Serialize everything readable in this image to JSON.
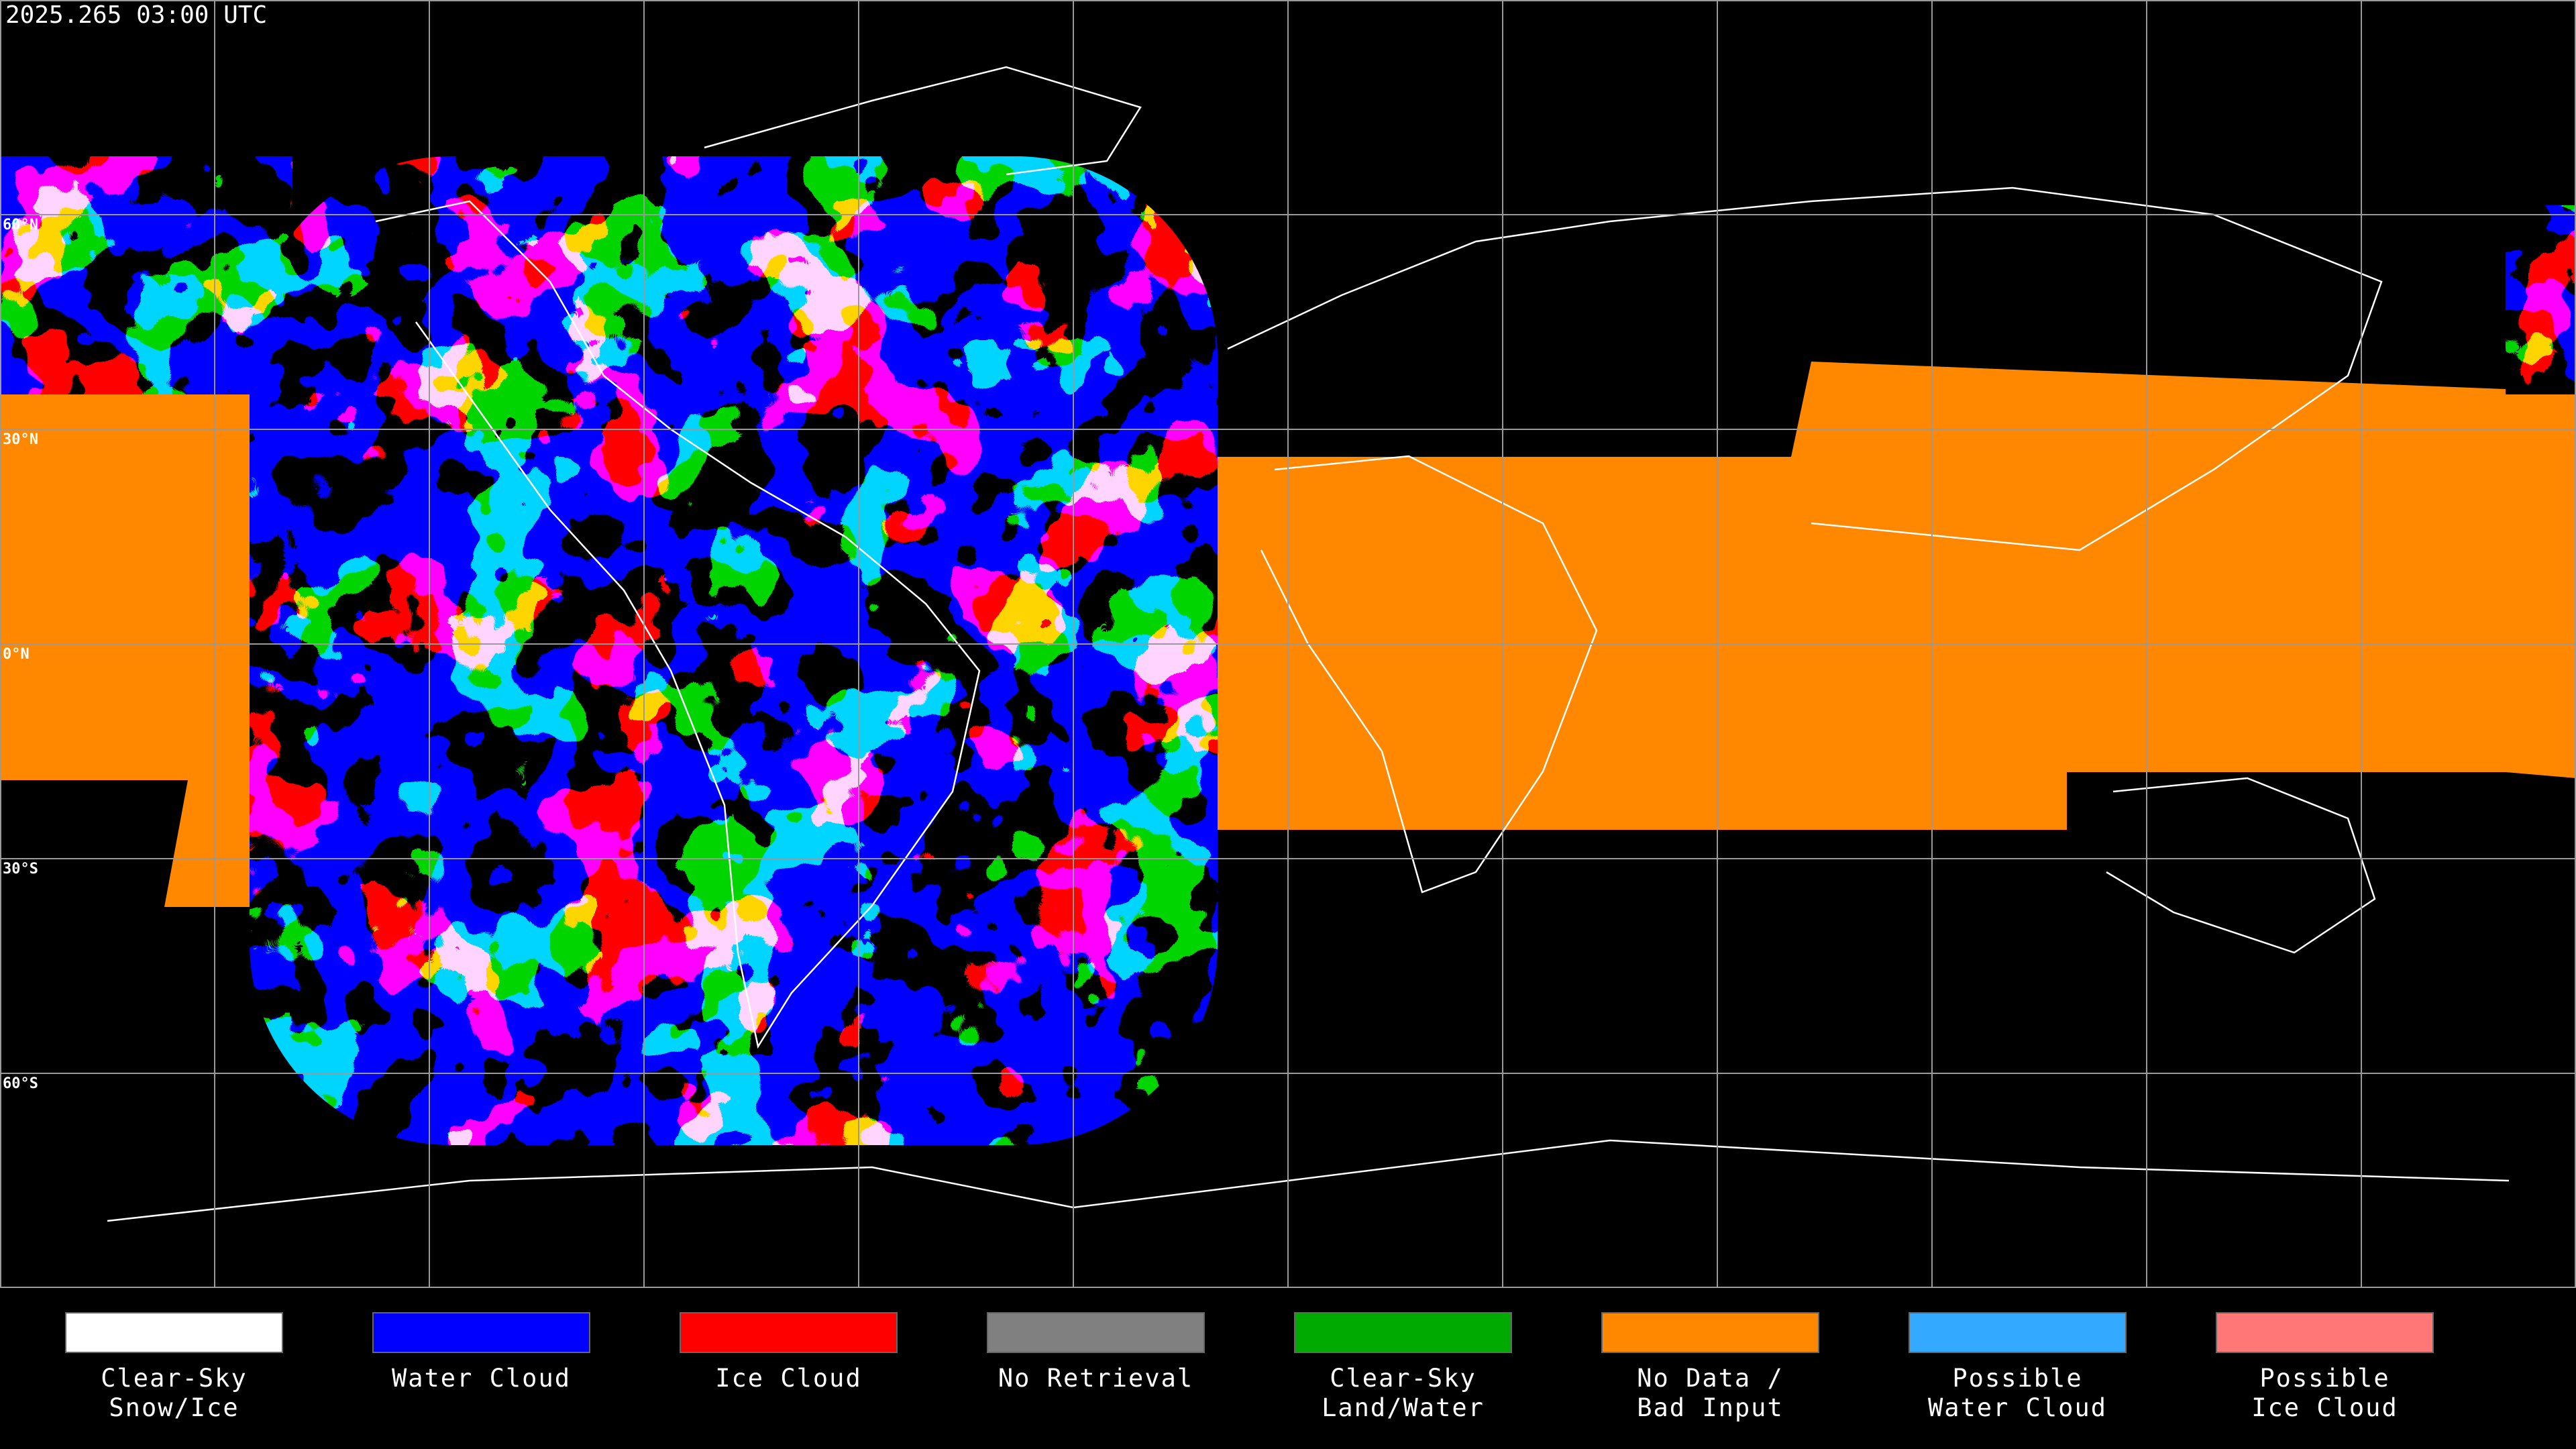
{
  "timestamp": "2025.265 03:00 UTC",
  "latitude_labels": [
    "60°N",
    "30°N",
    "0°N",
    "30°S",
    "60°S"
  ],
  "legend": [
    {
      "color": "#ffffff",
      "lines": [
        "Clear-Sky",
        "Snow/Ice"
      ]
    },
    {
      "color": "#0000ff",
      "lines": [
        "Water Cloud"
      ]
    },
    {
      "color": "#ff0000",
      "lines": [
        "Ice Cloud"
      ]
    },
    {
      "color": "#808080",
      "lines": [
        "No Retrieval"
      ]
    },
    {
      "color": "#00aa00",
      "lines": [
        "Clear-Sky",
        "Land/Water"
      ]
    },
    {
      "color": "#ff8800",
      "lines": [
        "No Data /",
        "Bad Input"
      ]
    },
    {
      "color": "#33aaff",
      "lines": [
        "Possible",
        "Water Cloud"
      ]
    },
    {
      "color": "#ff7777",
      "lines": [
        "Possible",
        "Ice Cloud"
      ]
    }
  ]
}
